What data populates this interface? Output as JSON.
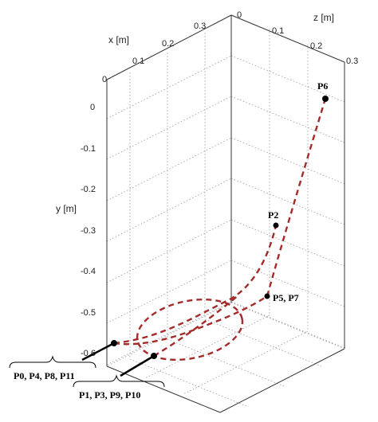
{
  "chart_data": {
    "type": "line3d",
    "axes": {
      "x": {
        "label": "x [m]",
        "ticks": [
          "0",
          "0.1",
          "0.2",
          "0.3"
        ]
      },
      "y": {
        "label": "y [m]",
        "ticks": [
          "0",
          "-0.1",
          "-0.2",
          "-0.3",
          "-0.4",
          "-0.5",
          "-0.6"
        ]
      },
      "z": {
        "label": "z [m]",
        "ticks": [
          "0",
          "0.1",
          "0.2",
          "0.3"
        ]
      }
    },
    "grid": true,
    "series": [
      {
        "color": "#a52a2a",
        "style": "dashed",
        "description": "end-effector trajectory P0→P1→P2→P3→P4→P5→P6→P7→P8→P9→P10→P11"
      }
    ],
    "points": [
      {
        "label": "P6"
      },
      {
        "label": "P2"
      },
      {
        "label": "P5, P7"
      },
      {
        "label": "P0, P4, P8, P11"
      },
      {
        "label": "P1, P3, P9, P10"
      }
    ]
  }
}
